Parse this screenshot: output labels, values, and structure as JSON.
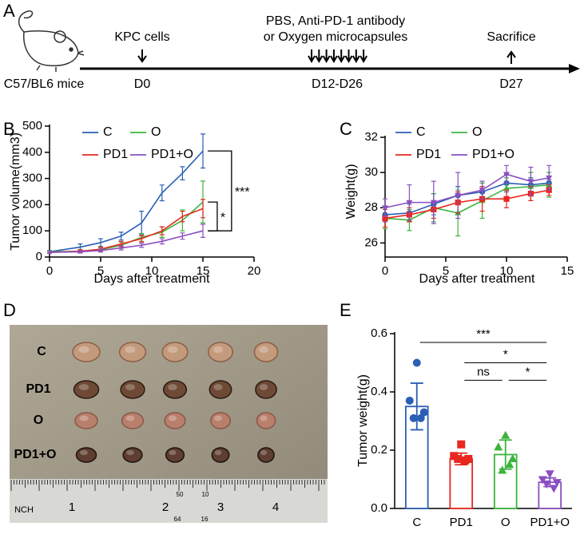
{
  "panel_labels": [
    "A",
    "B",
    "C",
    "D",
    "E"
  ],
  "timeline": {
    "strain": "C57/BL6 mice",
    "events": [
      {
        "label": [
          "KPC cells"
        ],
        "day": "D0"
      },
      {
        "label": [
          "PBS, Anti-PD-1 antibody",
          "or Oxygen microcapsules"
        ],
        "day": "D12-D26"
      },
      {
        "label": [
          "Sacrifice"
        ],
        "day": "D27"
      }
    ]
  },
  "photo": {
    "row_labels": [
      "C",
      "PD1",
      "O",
      "PD1+O"
    ],
    "ruler_labels": [
      "NCH",
      "1",
      "2",
      "3",
      "4"
    ],
    "ruler_small": [
      "50",
      "10",
      "64",
      "16"
    ]
  },
  "chart_data": [
    {
      "type": "line",
      "y_label": "Tumor volume(mm3)",
      "x_label": "Days after treatment",
      "x": [
        0,
        3,
        5,
        7,
        9,
        11,
        13,
        15
      ],
      "xlim": [
        0,
        20
      ],
      "xticks": [
        0,
        5,
        10,
        15,
        20
      ],
      "ylim": [
        0,
        500
      ],
      "yticks": [
        0,
        100,
        200,
        300,
        400,
        500
      ],
      "series": [
        {
          "name": "C",
          "color": "#2b5fb4",
          "values": [
            20,
            38,
            55,
            80,
            130,
            245,
            320,
            405
          ],
          "errors": [
            5,
            12,
            15,
            15,
            45,
            30,
            25,
            65
          ]
        },
        {
          "name": "O",
          "color": "#3cb43c",
          "values": [
            20,
            22,
            28,
            45,
            75,
            95,
            140,
            210
          ],
          "errors": [
            4,
            6,
            8,
            12,
            15,
            20,
            40,
            80
          ]
        },
        {
          "name": "PD1",
          "color": "#e8281e",
          "values": [
            18,
            22,
            30,
            50,
            70,
            100,
            155,
            185
          ],
          "errors": [
            4,
            6,
            8,
            10,
            12,
            15,
            20,
            35
          ]
        },
        {
          "name": "PD1+O",
          "color": "#8a4fc1",
          "values": [
            18,
            20,
            25,
            35,
            45,
            60,
            80,
            100
          ],
          "errors": [
            4,
            5,
            6,
            8,
            8,
            10,
            12,
            25
          ]
        }
      ],
      "brackets": [
        {
          "text": "***",
          "x": 17.8,
          "y1": 405,
          "y2": 100
        },
        {
          "text": "*",
          "x": 16.4,
          "y1": 210,
          "y2": 100
        }
      ]
    },
    {
      "type": "line",
      "y_label": "Weight(g)",
      "x_label": "Days after treatment",
      "x": [
        0,
        2,
        4,
        6,
        8,
        10,
        12,
        13.5
      ],
      "xlim": [
        0,
        15
      ],
      "xticks": [
        0,
        5,
        10,
        15
      ],
      "ylim": [
        25.2,
        32
      ],
      "yticks": [
        26,
        28,
        30,
        32
      ],
      "series": [
        {
          "name": "C",
          "color": "#2b5fb4",
          "marker": "circle",
          "values": [
            27.6,
            27.7,
            28.2,
            28.7,
            28.9,
            29.4,
            29.3,
            29.4
          ],
          "errors": [
            0.4,
            0.5,
            0.6,
            0.5,
            0.3,
            0.5,
            0.4,
            0.2
          ]
        },
        {
          "name": "O",
          "color": "#3cb43c",
          "marker": "triangle-up",
          "values": [
            27.4,
            27.3,
            28.0,
            27.7,
            28.4,
            29.1,
            29.2,
            29.3
          ],
          "errors": [
            0.6,
            0.6,
            0.8,
            1.3,
            1.0,
            0.6,
            0.8,
            0.7
          ]
        },
        {
          "name": "PD1",
          "color": "#e8281e",
          "marker": "square",
          "values": [
            27.4,
            27.6,
            27.9,
            28.3,
            28.5,
            28.5,
            28.8,
            29.0
          ],
          "errors": [
            0.5,
            0.4,
            0.5,
            0.6,
            0.7,
            0.5,
            0.4,
            0.3
          ]
        },
        {
          "name": "PD1+O",
          "color": "#8a4fc1",
          "marker": "triangle-down",
          "values": [
            28.0,
            28.3,
            28.3,
            28.7,
            29.0,
            29.9,
            29.5,
            29.7
          ],
          "errors": [
            0.5,
            1.0,
            1.2,
            1.3,
            0.5,
            0.5,
            0.8,
            0.7
          ]
        }
      ]
    },
    {
      "type": "bar",
      "y_label": "Tumor weight(g)",
      "categories": [
        "C",
        "PD1",
        "O",
        "PD1+O"
      ],
      "values": [
        0.35,
        0.17,
        0.185,
        0.09
      ],
      "errors": [
        0.08,
        0.02,
        0.05,
        0.015
      ],
      "colors": [
        "#2b5fb4",
        "#e8281e",
        "#3cb43c",
        "#8a4fc1"
      ],
      "markers": [
        "circle",
        "square",
        "triangle-up",
        "triangle-down"
      ],
      "points": [
        [
          0.5,
          0.37,
          0.33,
          0.31,
          0.31
        ],
        [
          0.22,
          0.18,
          0.17,
          0.17,
          0.165
        ],
        [
          0.25,
          0.21,
          0.17,
          0.13,
          0.15
        ],
        [
          0.12,
          0.1,
          0.09,
          0.085,
          0.07
        ]
      ],
      "ylim": [
        0,
        0.6
      ],
      "yticks": [
        {
          "value": 0,
          "label": "0.0"
        },
        0.2,
        0.4,
        0.6
      ],
      "brackets": [
        {
          "text": "***",
          "from": "C",
          "to": "PD1+O",
          "y": 0.57
        },
        {
          "text": "*",
          "from": "PD1",
          "to": "PD1+O",
          "y": 0.5
        },
        {
          "text": "ns",
          "from": "PD1",
          "to": "O",
          "y": 0.44
        },
        {
          "text": "*",
          "from": "O",
          "to": "PD1+O",
          "y": 0.44
        }
      ]
    }
  ]
}
